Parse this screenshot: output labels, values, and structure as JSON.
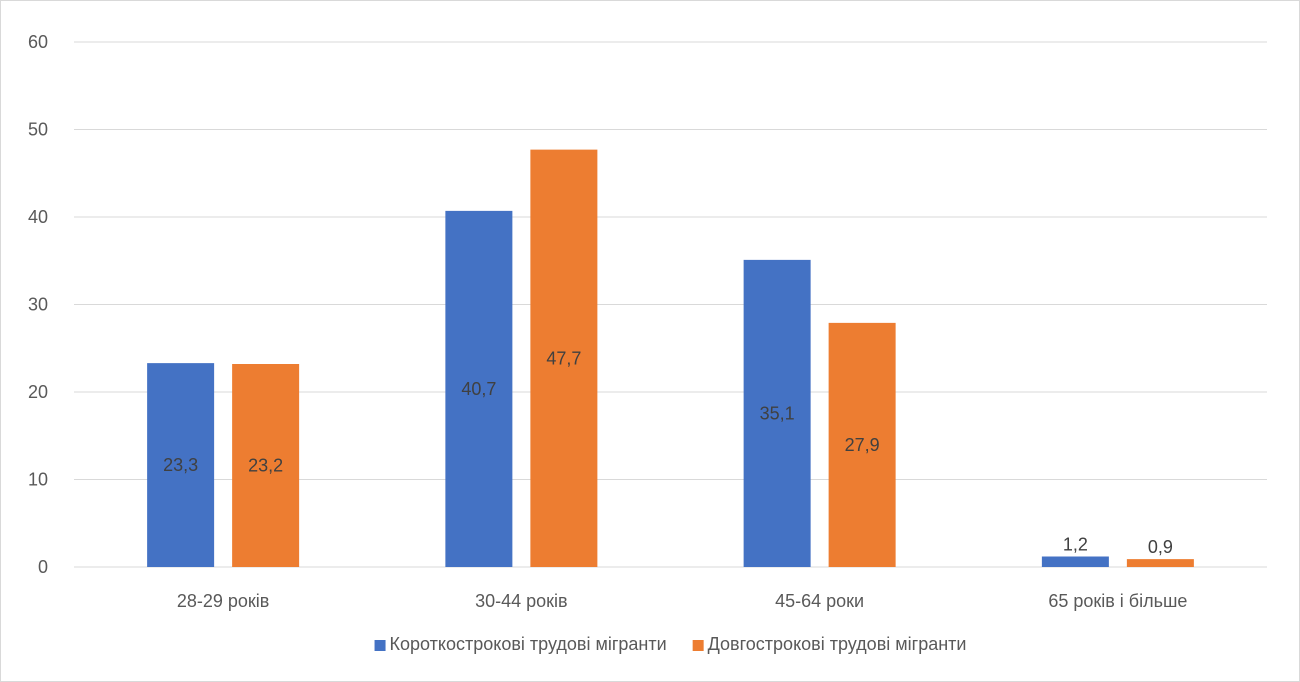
{
  "chart_data": {
    "type": "bar",
    "categories": [
      "28-29 років",
      "30-44 років",
      "45-64 роки",
      "65 років і більше"
    ],
    "series": [
      {
        "name": "Короткострокові трудові мігранти",
        "color": "#4472c4",
        "values": [
          23.3,
          40.7,
          35.1,
          1.2
        ],
        "labels": [
          "23,3",
          "40,7",
          "35,1",
          "1,2"
        ]
      },
      {
        "name": "Довгострокові трудові мігранти",
        "color": "#ed7d31",
        "values": [
          23.2,
          47.7,
          27.9,
          0.9
        ],
        "labels": [
          "23,2",
          "47,7",
          "27,9",
          "0,9"
        ]
      }
    ],
    "title": "",
    "xlabel": "",
    "ylabel": "",
    "ylim": [
      0,
      60
    ],
    "yticks": [
      0,
      10,
      20,
      30,
      40,
      50,
      60
    ],
    "grid": true,
    "legend_position": "bottom"
  }
}
